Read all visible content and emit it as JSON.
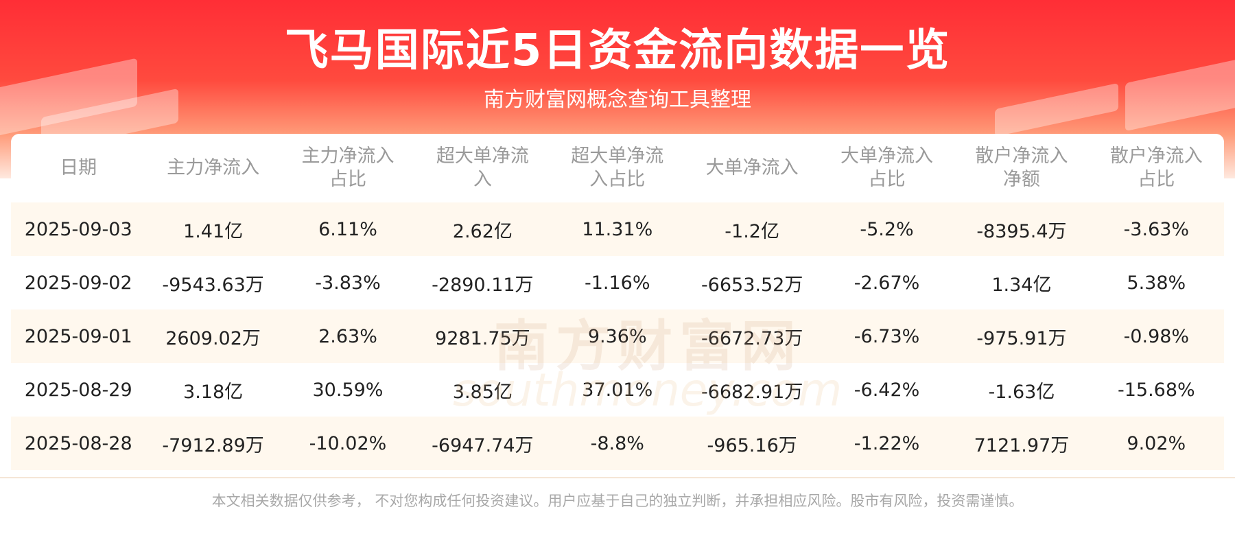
{
  "header": {
    "title": "飞马国际近5日资金流向数据一览",
    "subtitle": "南方财富网概念查询工具整理"
  },
  "table": {
    "columns": [
      "日期",
      "主力净流入",
      "主力净流入占比",
      "超大单净流入",
      "超大单净流入占比",
      "大单净流入",
      "大单净流入占比",
      "散户净流入净额",
      "散户净流入占比"
    ],
    "rows": [
      [
        "2025-09-03",
        "1.41亿",
        "6.11%",
        "2.62亿",
        "11.31%",
        "-1.2亿",
        "-5.2%",
        "-8395.4万",
        "-3.63%"
      ],
      [
        "2025-09-02",
        "-9543.63万",
        "-3.83%",
        "-2890.11万",
        "-1.16%",
        "-6653.52万",
        "-2.67%",
        "1.34亿",
        "5.38%"
      ],
      [
        "2025-09-01",
        "2609.02万",
        "2.63%",
        "9281.75万",
        "9.36%",
        "-6672.73万",
        "-6.73%",
        "-975.91万",
        "-0.98%"
      ],
      [
        "2025-08-29",
        "3.18亿",
        "30.59%",
        "3.85亿",
        "37.01%",
        "-6682.91万",
        "-6.42%",
        "-1.63亿",
        "-15.68%"
      ],
      [
        "2025-08-28",
        "-7912.89万",
        "-10.02%",
        "-6947.74万",
        "-8.8%",
        "-965.16万",
        "-1.22%",
        "7121.97万",
        "9.02%"
      ]
    ]
  },
  "watermark": {
    "name": "南方财富网",
    "site": "southmoney.com"
  },
  "footer": "本文相关数据仅供参考， 不对您构成任何投资建议。用户应基于自己的独立判断，并承担相应风险。股市有风险，投资需谨慎。"
}
